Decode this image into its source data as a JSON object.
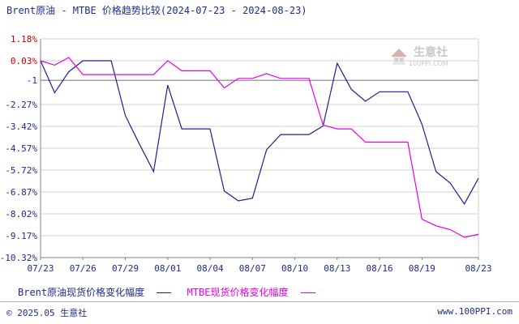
{
  "title": "Brent原油 - MTBE 价格趋势比较(2024-07-23 - 2024-08-23)",
  "watermark": {
    "name": "生意社",
    "url": "100PPI.COM"
  },
  "footer": {
    "copyright": "© 2025.05 生意社",
    "site": "www.100PPI.com"
  },
  "colors": {
    "brent": "#1f1f8f",
    "mtbe": "#e600e6",
    "grid": "#d0d0d0",
    "axis": "#808080",
    "label_red": "#cc0000",
    "text": "#1f2a8a"
  },
  "chart_data": {
    "type": "line",
    "title": "Brent原油 - MTBE 价格趋势比较(2024-07-23 - 2024-08-23)",
    "x": [
      "07/23",
      "07/24",
      "07/25",
      "07/26",
      "07/27",
      "07/28",
      "07/29",
      "07/30",
      "07/31",
      "08/01",
      "08/02",
      "08/03",
      "08/04",
      "08/05",
      "08/06",
      "08/07",
      "08/08",
      "08/09",
      "08/10",
      "08/11",
      "08/12",
      "08/13",
      "08/14",
      "08/15",
      "08/16",
      "08/17",
      "08/18",
      "08/19",
      "08/20",
      "08/21",
      "08/22",
      "08/23"
    ],
    "x_tick_labels": [
      "07/23",
      "07/26",
      "07/29",
      "08/01",
      "08/04",
      "08/07",
      "08/10",
      "08/13",
      "08/16",
      "08/19",
      "08/23"
    ],
    "y_tick_labels": [
      "1.18%",
      "0.03%",
      "-1",
      "-2.27%",
      "-3.42%",
      "-4.57%",
      "-5.72%",
      "-6.87%",
      "-8.02%",
      "-9.17%",
      "-10.32%"
    ],
    "y_ticks": [
      1.18,
      0.03,
      -1,
      -2.27,
      -3.42,
      -4.57,
      -5.72,
      -6.87,
      -8.02,
      -9.17,
      -10.32
    ],
    "ylim": [
      -10.32,
      1.18
    ],
    "reference_line": -1,
    "grid": "horizontal",
    "legend_position": "bottom-left",
    "series": [
      {
        "name": "Brent原油现货价格变化幅度",
        "color": "#1f1f8f",
        "values": [
          0.03,
          -1.65,
          -0.55,
          0.03,
          0.03,
          0.03,
          -2.85,
          -4.35,
          -5.8,
          -1.25,
          -3.55,
          -3.55,
          -3.55,
          -6.82,
          -7.34,
          -7.2,
          -4.65,
          -3.85,
          -3.85,
          -3.85,
          -3.4,
          -0.1,
          -1.47,
          -2.1,
          -1.6,
          -1.6,
          -1.6,
          -3.3,
          -5.8,
          -6.4,
          -7.5,
          -6.15
        ]
      },
      {
        "name": "MTBE现货价格变化幅度",
        "color": "#e600e6",
        "values": [
          0.03,
          -0.2,
          0.2,
          -0.7,
          -0.7,
          -0.7,
          -0.7,
          -0.7,
          -0.7,
          0.03,
          -0.5,
          -0.5,
          -0.5,
          -1.4,
          -0.9,
          -0.9,
          -0.65,
          -0.9,
          -0.9,
          -0.9,
          -3.35,
          -3.55,
          -3.55,
          -4.25,
          -4.25,
          -4.25,
          -4.25,
          -8.3,
          -8.65,
          -8.85,
          -9.25,
          -9.1
        ]
      }
    ]
  },
  "legend": [
    {
      "label": "Brent原油现货价格变化幅度",
      "color": "#1f1f8f"
    },
    {
      "label": "MTBE现货价格变化幅度",
      "color": "#e600e6"
    }
  ]
}
